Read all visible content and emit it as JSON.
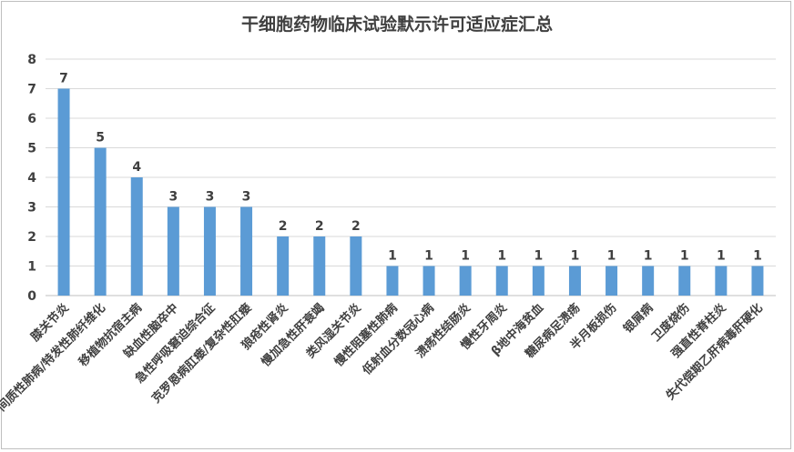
{
  "chart_data": {
    "type": "bar",
    "title": "干细胞药物临床试验默示许可适应症汇总",
    "xlabel": "",
    "ylabel": "",
    "ylim": [
      0,
      8
    ],
    "yticks": [
      0,
      1,
      2,
      3,
      4,
      5,
      6,
      7,
      8
    ],
    "grid": true,
    "legend": "none",
    "bar_color": "#5b9bd5",
    "categories": [
      "膝关节炎",
      "间质性肺病/特发性肺纤维化",
      "移植物抗宿主病",
      "缺血性脑卒中",
      "急性呼吸窘迫综合征",
      "克罗恩病肛瘘/复杂性肛瘘",
      "狼疮性肾炎",
      "慢加急性肝衰竭",
      "类风湿关节炎",
      "慢性阻塞性肺病",
      "低射血分数冠心病",
      "溃疡性结肠炎",
      "慢性牙周炎",
      "β地中海贫血",
      "糖尿病足溃疡",
      "半月板损伤",
      "银屑病",
      "卫度烧伤",
      "强直性脊柱炎",
      "失代偿期乙肝病毒肝硬化"
    ],
    "values": [
      7,
      5,
      4,
      3,
      3,
      3,
      2,
      2,
      2,
      1,
      1,
      1,
      1,
      1,
      1,
      1,
      1,
      1,
      1,
      1
    ]
  }
}
